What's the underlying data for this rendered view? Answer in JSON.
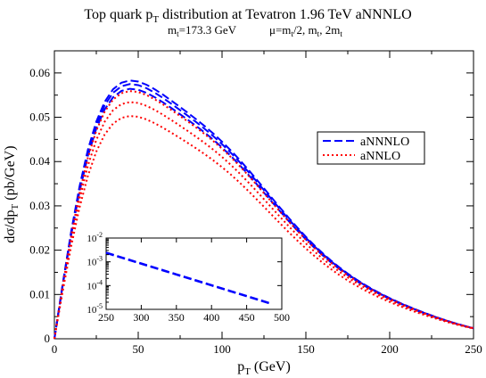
{
  "chart_data": [
    {
      "type": "line",
      "title": {
        "main_a": "Top quark p",
        "main_sub": "T",
        "main_b": " distribution at Tevatron  1.96 TeV    aNNNLO"
      },
      "subtitle": {
        "m_a": "m",
        "m_sub": "t",
        "m_b": "=173.3 GeV",
        "mu_a": "μ=m",
        "mu_sub1": "t",
        "mu_b": "/2, m",
        "mu_sub2": "t",
        "mu_c": ", 2m",
        "mu_sub3": "t"
      },
      "xlabel": {
        "a": "p",
        "sub": "T",
        "b": " (GeV)"
      },
      "ylabel": {
        "a": "dσ/dp",
        "sub": "T",
        "b": " (pb/GeV)"
      },
      "xlim": [
        0,
        250
      ],
      "ylim": [
        0,
        0.065
      ],
      "xticks": [
        "0",
        "50",
        "100",
        "150",
        "200",
        "250"
      ],
      "yticks": [
        "0",
        "0.01",
        "0.02",
        "0.03",
        "0.04",
        "0.05",
        "0.06"
      ],
      "legend_position": "right",
      "x": [
        0,
        5,
        10,
        15,
        20,
        25,
        30,
        35,
        40,
        45,
        50,
        55,
        60,
        65,
        70,
        75,
        80,
        85,
        90,
        95,
        100,
        105,
        110,
        115,
        120,
        125,
        130,
        135,
        140,
        145,
        150,
        155,
        160,
        165,
        170,
        175,
        180,
        185,
        190,
        195,
        200,
        205,
        210,
        215,
        220,
        225,
        230,
        235,
        240,
        245,
        250
      ],
      "series": [
        {
          "name": "aNNNLO",
          "legend": true,
          "color": "#0000ff",
          "style": "dashed",
          "values": [
            0.0,
            0.01234,
            0.02386,
            0.0339,
            0.04209,
            0.04834,
            0.05274,
            0.05553,
            0.057,
            0.05749,
            0.05726,
            0.05655,
            0.05552,
            0.0543,
            0.05298,
            0.05161,
            0.05022,
            0.04878,
            0.04727,
            0.04566,
            0.04393,
            0.04207,
            0.04008,
            0.03798,
            0.0358,
            0.03356,
            0.03131,
            0.02908,
            0.0269,
            0.0248,
            0.02279,
            0.0209,
            0.01913,
            0.01749,
            0.01597,
            0.01458,
            0.0133,
            0.01212,
            0.01104,
            0.01004,
            0.00911,
            0.00824,
            0.00742,
            0.00665,
            0.00592,
            0.00522,
            0.00457,
            0.00395,
            0.00338,
            0.00286,
            0.00238
          ]
        },
        {
          "name": "",
          "legend": false,
          "color": "#0000ff",
          "style": "dashed",
          "values": [
            0.0,
            0.01252,
            0.02422,
            0.0344,
            0.04271,
            0.04904,
            0.0535,
            0.05633,
            0.05781,
            0.0583,
            0.05806,
            0.05733,
            0.05628,
            0.05504,
            0.05369,
            0.0523,
            0.05088,
            0.04942,
            0.04788,
            0.04625,
            0.04449,
            0.0426,
            0.04058,
            0.03845,
            0.03623,
            0.03396,
            0.03167,
            0.02941,
            0.0272,
            0.02507,
            0.02303,
            0.02111,
            0.01932,
            0.01766,
            0.01612,
            0.01471,
            0.01342,
            0.01222,
            0.01113,
            0.01012,
            0.00918,
            0.0083,
            0.00748,
            0.0067,
            0.00596,
            0.00526,
            0.0046,
            0.00398,
            0.0034,
            0.00287,
            0.00239
          ]
        },
        {
          "name": "",
          "legend": false,
          "color": "#0000ff",
          "style": "dashed",
          "values": [
            0.0,
            0.01211,
            0.02342,
            0.03327,
            0.04132,
            0.04745,
            0.05177,
            0.05451,
            0.05595,
            0.05643,
            0.05621,
            0.05551,
            0.0545,
            0.05331,
            0.05202,
            0.05068,
            0.04932,
            0.04791,
            0.04644,
            0.04486,
            0.04317,
            0.04135,
            0.0394,
            0.03734,
            0.0352,
            0.03301,
            0.0308,
            0.02861,
            0.02647,
            0.02441,
            0.02244,
            0.02058,
            0.01884,
            0.01723,
            0.01574,
            0.01437,
            0.01311,
            0.01195,
            0.01089,
            0.0099,
            0.00899,
            0.00813,
            0.00732,
            0.00656,
            0.00584,
            0.00516,
            0.00451,
            0.0039,
            0.00334,
            0.00283,
            0.00236
          ]
        },
        {
          "name": "aNNLO",
          "legend": true,
          "color": "#ff0000",
          "style": "dotted",
          "values": [
            0.0,
            0.01146,
            0.02215,
            0.03148,
            0.0391,
            0.0449,
            0.049,
            0.0516,
            0.05297,
            0.05343,
            0.05323,
            0.05257,
            0.05163,
            0.05051,
            0.04931,
            0.04806,
            0.04679,
            0.04547,
            0.04409,
            0.04262,
            0.04104,
            0.03934,
            0.03751,
            0.03558,
            0.03357,
            0.0315,
            0.02942,
            0.02735,
            0.02532,
            0.02337,
            0.0215,
            0.01973,
            0.01808,
            0.01655,
            0.01513,
            0.01382,
            0.01262,
            0.01152,
            0.01051,
            0.00957,
            0.0087,
            0.00788,
            0.00711,
            0.00639,
            0.0057,
            0.00505,
            0.00443,
            0.00385,
            0.00331,
            0.00281,
            0.00236
          ]
        },
        {
          "name": "",
          "legend": false,
          "color": "#ff0000",
          "style": "dotted",
          "values": [
            0.0,
            0.01199,
            0.02318,
            0.03294,
            0.04091,
            0.04698,
            0.05128,
            0.054,
            0.05543,
            0.05591,
            0.0557,
            0.05501,
            0.05402,
            0.05285,
            0.05158,
            0.05027,
            0.04893,
            0.04755,
            0.0461,
            0.04455,
            0.04289,
            0.0411,
            0.03918,
            0.03715,
            0.03504,
            0.03287,
            0.03069,
            0.02851,
            0.02639,
            0.02434,
            0.02238,
            0.02053,
            0.0188,
            0.0172,
            0.01572,
            0.01436,
            0.01311,
            0.01196,
            0.0109,
            0.00992,
            0.00901,
            0.00816,
            0.00736,
            0.0066,
            0.00588,
            0.00519,
            0.00455,
            0.00394,
            0.00337,
            0.00284,
            0.00237
          ]
        },
        {
          "name": "",
          "legend": false,
          "color": "#ff0000",
          "style": "dotted",
          "values": [
            0.0,
            0.01078,
            0.02085,
            0.02963,
            0.0368,
            0.04226,
            0.04612,
            0.04857,
            0.04986,
            0.05029,
            0.05011,
            0.0495,
            0.04862,
            0.04758,
            0.04646,
            0.04529,
            0.0441,
            0.04287,
            0.04158,
            0.04021,
            0.03873,
            0.03714,
            0.03543,
            0.03362,
            0.03173,
            0.0298,
            0.02784,
            0.02589,
            0.02398,
            0.02214,
            0.02038,
            0.01872,
            0.01717,
            0.01572,
            0.01438,
            0.01315,
            0.01202,
            0.01098,
            0.01002,
            0.00913,
            0.0083,
            0.00753,
            0.0068,
            0.00611,
            0.00546,
            0.00484,
            0.00426,
            0.00371,
            0.0032,
            0.00273,
            0.0023
          ]
        }
      ]
    },
    {
      "type": "line",
      "inset": true,
      "y_scale": "log",
      "xlim": [
        250,
        500
      ],
      "ylim": [
        1e-05,
        0.01
      ],
      "xticks": [
        "250",
        "300",
        "350",
        "400",
        "450",
        "500"
      ],
      "yticks": [
        {
          "base": "10",
          "exp": "-2"
        },
        {
          "base": "10",
          "exp": "-3"
        },
        {
          "base": "10",
          "exp": "-4"
        },
        {
          "base": "10",
          "exp": "-5"
        }
      ],
      "x": [
        250,
        275,
        300,
        325,
        350,
        375,
        400,
        425,
        450,
        475,
        485
      ],
      "series": [
        {
          "name": "",
          "color": "#0000ff",
          "style": "dashed",
          "values": [
            0.0024,
            0.00142,
            0.00084,
            0.000497,
            0.000294,
            0.000174,
            0.000103,
            6.09e-05,
            3.6e-05,
            2.13e-05,
            1.72e-05
          ]
        },
        {
          "name": "",
          "color": "#0000ff",
          "style": "dashed",
          "values": [
            0.00246,
            0.00146,
            0.000862,
            0.00051,
            0.000302,
            0.000179,
            0.000106,
            6.25e-05,
            3.7e-05,
            2.19e-05,
            1.77e-05
          ]
        },
        {
          "name": "",
          "color": "#0000ff",
          "style": "dashed",
          "values": [
            0.00234,
            0.00138,
            0.000818,
            0.000484,
            0.000286,
            0.000169,
            0.0001,
            5.93e-05,
            3.51e-05,
            2.07e-05,
            1.67e-05
          ]
        }
      ]
    }
  ]
}
